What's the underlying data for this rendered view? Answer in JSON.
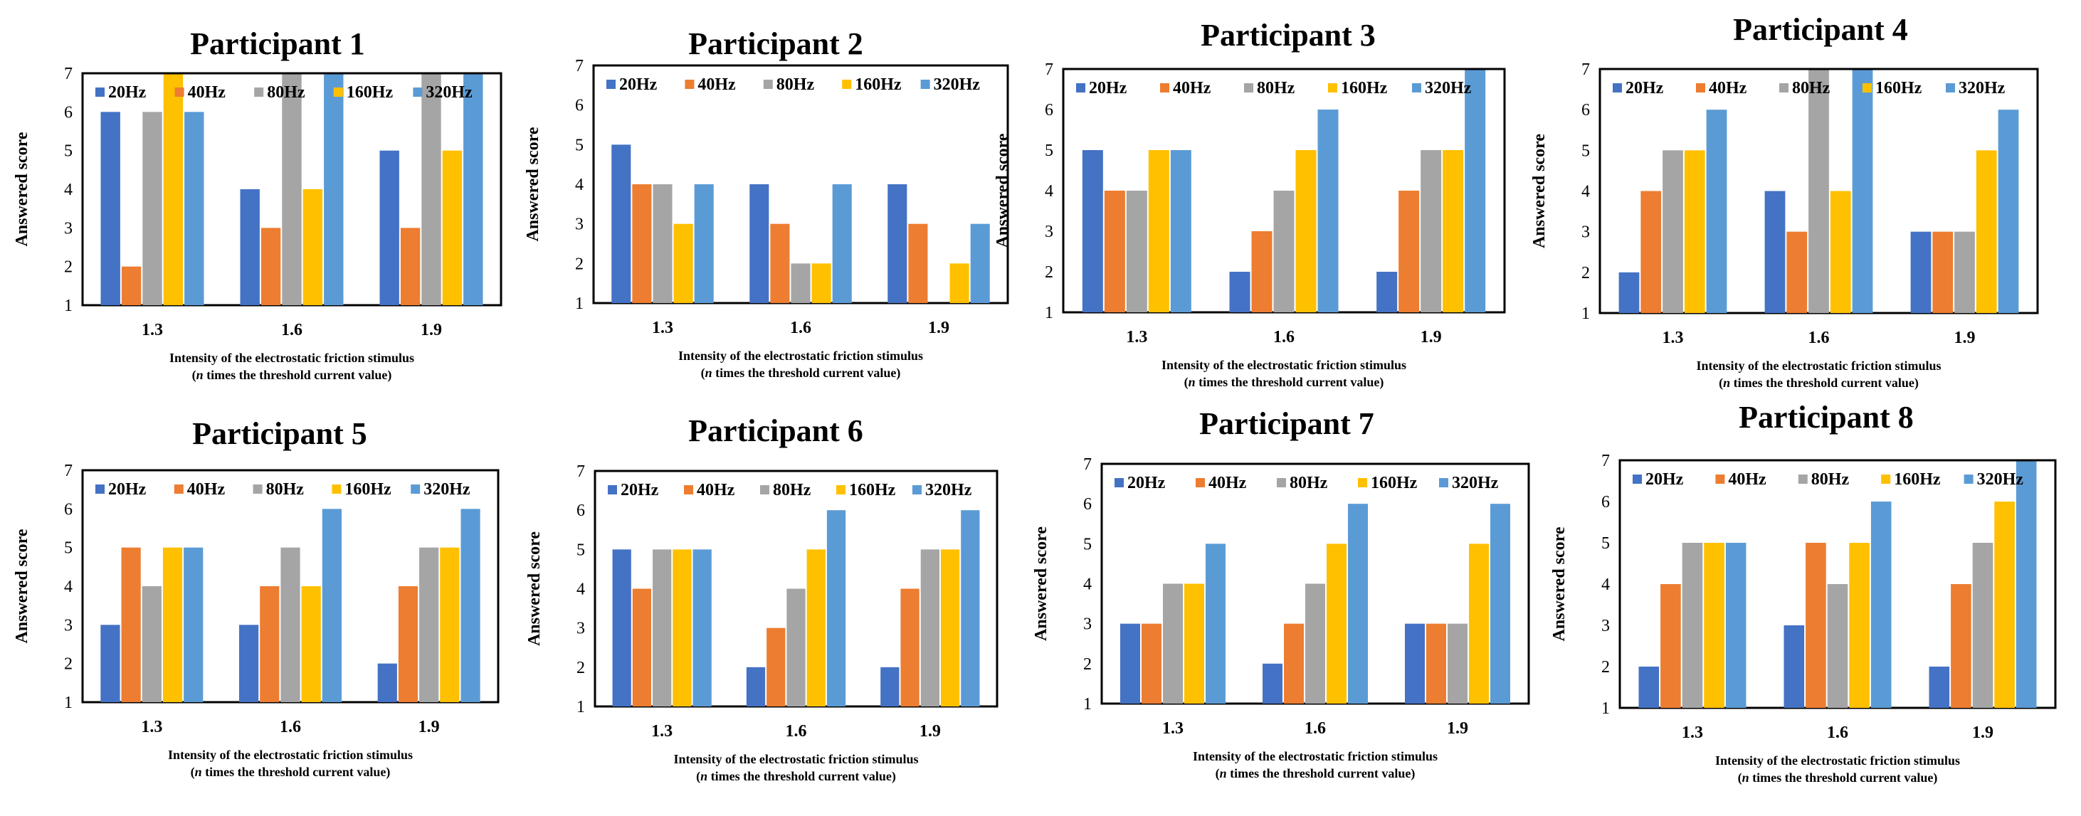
{
  "figure": {
    "series_names": [
      "20Hz",
      "40Hz",
      "80Hz",
      "160Hz",
      "320Hz"
    ],
    "series_colors": [
      "#4472C4",
      "#ED7D31",
      "#A5A5A5",
      "#FFC000",
      "#5B9BD5"
    ]
  },
  "chart_data": [
    {
      "type": "bar",
      "title": "Participant 1",
      "categories": [
        "1.3",
        "1.6",
        "1.9"
      ],
      "xlabel": "Intensity of the electrostatic friction stimulus",
      "xlabel_line2_italic": "n",
      "xlabel_line2": " times the threshold current value)",
      "ylabel": "Answered score",
      "ylim": [
        1,
        7
      ],
      "yticks": [
        "1",
        "2",
        "3",
        "4",
        "5",
        "6",
        "7"
      ],
      "legend_position": "top",
      "series": [
        {
          "name": "20Hz",
          "values": [
            6,
            4,
            5
          ]
        },
        {
          "name": "40Hz",
          "values": [
            2,
            3,
            3
          ]
        },
        {
          "name": "80Hz",
          "values": [
            6,
            7,
            7
          ]
        },
        {
          "name": "160Hz",
          "values": [
            7,
            4,
            5
          ]
        },
        {
          "name": "320Hz",
          "values": [
            6,
            7,
            7
          ]
        }
      ]
    },
    {
      "type": "bar",
      "title": "Participant 2",
      "categories": [
        "1.3",
        "1.6",
        "1.9"
      ],
      "xlabel": "Intensity of the electrostatic friction stimulus",
      "xlabel_line2_italic": "n",
      "xlabel_line2": " times the threshold current value)",
      "ylabel": "Answered score",
      "ylim": [
        1,
        7
      ],
      "yticks": [
        "1",
        "2",
        "3",
        "4",
        "5",
        "6",
        "7"
      ],
      "legend_position": "top",
      "series": [
        {
          "name": "20Hz",
          "values": [
            5,
            4,
            4
          ]
        },
        {
          "name": "40Hz",
          "values": [
            4,
            3,
            3
          ]
        },
        {
          "name": "80Hz",
          "values": [
            4,
            2,
            1
          ]
        },
        {
          "name": "160Hz",
          "values": [
            3,
            2,
            2
          ]
        },
        {
          "name": "320Hz",
          "values": [
            4,
            4,
            3
          ]
        }
      ]
    },
    {
      "type": "bar",
      "title": "Participant 3",
      "categories": [
        "1.3",
        "1.6",
        "1.9"
      ],
      "xlabel": "Intensity of the electrostatic friction stimulus",
      "xlabel_line2_italic": "n",
      "xlabel_line2": " times the threshold current value)",
      "ylabel": "Answered score",
      "ylim": [
        1,
        7
      ],
      "yticks": [
        "1",
        "2",
        "3",
        "4",
        "5",
        "6",
        "7"
      ],
      "legend_position": "top",
      "series": [
        {
          "name": "20Hz",
          "values": [
            5,
            2,
            2
          ]
        },
        {
          "name": "40Hz",
          "values": [
            4,
            3,
            4
          ]
        },
        {
          "name": "80Hz",
          "values": [
            4,
            4,
            5
          ]
        },
        {
          "name": "160Hz",
          "values": [
            5,
            5,
            5
          ]
        },
        {
          "name": "320Hz",
          "values": [
            5,
            6,
            7
          ]
        }
      ]
    },
    {
      "type": "bar",
      "title": "Participant 4",
      "categories": [
        "1.3",
        "1.6",
        "1.9"
      ],
      "xlabel": "Intensity of the electrostatic friction stimulus",
      "xlabel_line2_italic": "n",
      "xlabel_line2": " times the threshold current value)",
      "ylabel": "Answered score",
      "ylim": [
        1,
        7
      ],
      "yticks": [
        "1",
        "2",
        "3",
        "4",
        "5",
        "6",
        "7"
      ],
      "legend_position": "top",
      "series": [
        {
          "name": "20Hz",
          "values": [
            2,
            4,
            3
          ]
        },
        {
          "name": "40Hz",
          "values": [
            4,
            3,
            3
          ]
        },
        {
          "name": "80Hz",
          "values": [
            5,
            7,
            3
          ]
        },
        {
          "name": "160Hz",
          "values": [
            5,
            4,
            5
          ]
        },
        {
          "name": "320Hz",
          "values": [
            6,
            7,
            6
          ]
        }
      ]
    },
    {
      "type": "bar",
      "title": "Participant 5",
      "categories": [
        "1.3",
        "1.6",
        "1.9"
      ],
      "xlabel": "Intensity of the electrostatic friction stimulus",
      "xlabel_line2_italic": "n",
      "xlabel_line2": " times the threshold current value)",
      "ylabel": "Answered score",
      "ylim": [
        1,
        7
      ],
      "yticks": [
        "1",
        "2",
        "3",
        "4",
        "5",
        "6",
        "7"
      ],
      "legend_position": "top",
      "series": [
        {
          "name": "20Hz",
          "values": [
            3,
            3,
            2
          ]
        },
        {
          "name": "40Hz",
          "values": [
            5,
            4,
            4
          ]
        },
        {
          "name": "80Hz",
          "values": [
            4,
            5,
            5
          ]
        },
        {
          "name": "160Hz",
          "values": [
            5,
            4,
            5
          ]
        },
        {
          "name": "320Hz",
          "values": [
            5,
            6,
            6
          ]
        }
      ]
    },
    {
      "type": "bar",
      "title": "Participant 6",
      "categories": [
        "1.3",
        "1.6",
        "1.9"
      ],
      "xlabel": "Intensity of the electrostatic friction stimulus",
      "xlabel_line2_italic": "n",
      "xlabel_line2": " times the threshold current value)",
      "ylabel": "Answered score",
      "ylim": [
        1,
        7
      ],
      "yticks": [
        "1",
        "2",
        "3",
        "4",
        "5",
        "6",
        "7"
      ],
      "legend_position": "top",
      "series": [
        {
          "name": "20Hz",
          "values": [
            5,
            2,
            2
          ]
        },
        {
          "name": "40Hz",
          "values": [
            4,
            3,
            4
          ]
        },
        {
          "name": "80Hz",
          "values": [
            5,
            4,
            5
          ]
        },
        {
          "name": "160Hz",
          "values": [
            5,
            5,
            5
          ]
        },
        {
          "name": "320Hz",
          "values": [
            5,
            6,
            6
          ]
        }
      ]
    },
    {
      "type": "bar",
      "title": "Participant 7",
      "categories": [
        "1.3",
        "1.6",
        "1.9"
      ],
      "xlabel": "Intensity of the electrostatic friction stimulus",
      "xlabel_line2_italic": "n",
      "xlabel_line2": " times the threshold current value)",
      "ylabel": "Answered score",
      "ylim": [
        1,
        7
      ],
      "yticks": [
        "1",
        "2",
        "3",
        "4",
        "5",
        "6",
        "7"
      ],
      "legend_position": "top",
      "series": [
        {
          "name": "20Hz",
          "values": [
            3,
            2,
            3
          ]
        },
        {
          "name": "40Hz",
          "values": [
            3,
            3,
            3
          ]
        },
        {
          "name": "80Hz",
          "values": [
            4,
            4,
            3
          ]
        },
        {
          "name": "160Hz",
          "values": [
            4,
            5,
            5
          ]
        },
        {
          "name": "320Hz",
          "values": [
            5,
            6,
            6
          ]
        }
      ]
    },
    {
      "type": "bar",
      "title": "Participant 8",
      "categories": [
        "1.3",
        "1.6",
        "1.9"
      ],
      "xlabel": "Intensity of the electrostatic friction stimulus",
      "xlabel_line2_italic": "n",
      "xlabel_line2": " times the threshold current value)",
      "ylabel": "Answered score",
      "ylim": [
        1,
        7
      ],
      "yticks": [
        "1",
        "2",
        "3",
        "4",
        "5",
        "6",
        "7"
      ],
      "legend_position": "top",
      "series": [
        {
          "name": "20Hz",
          "values": [
            2,
            3,
            2
          ]
        },
        {
          "name": "40Hz",
          "values": [
            4,
            5,
            4
          ]
        },
        {
          "name": "80Hz",
          "values": [
            5,
            4,
            5
          ]
        },
        {
          "name": "160Hz",
          "values": [
            5,
            5,
            6
          ]
        },
        {
          "name": "320Hz",
          "values": [
            5,
            6,
            7
          ]
        }
      ]
    }
  ]
}
